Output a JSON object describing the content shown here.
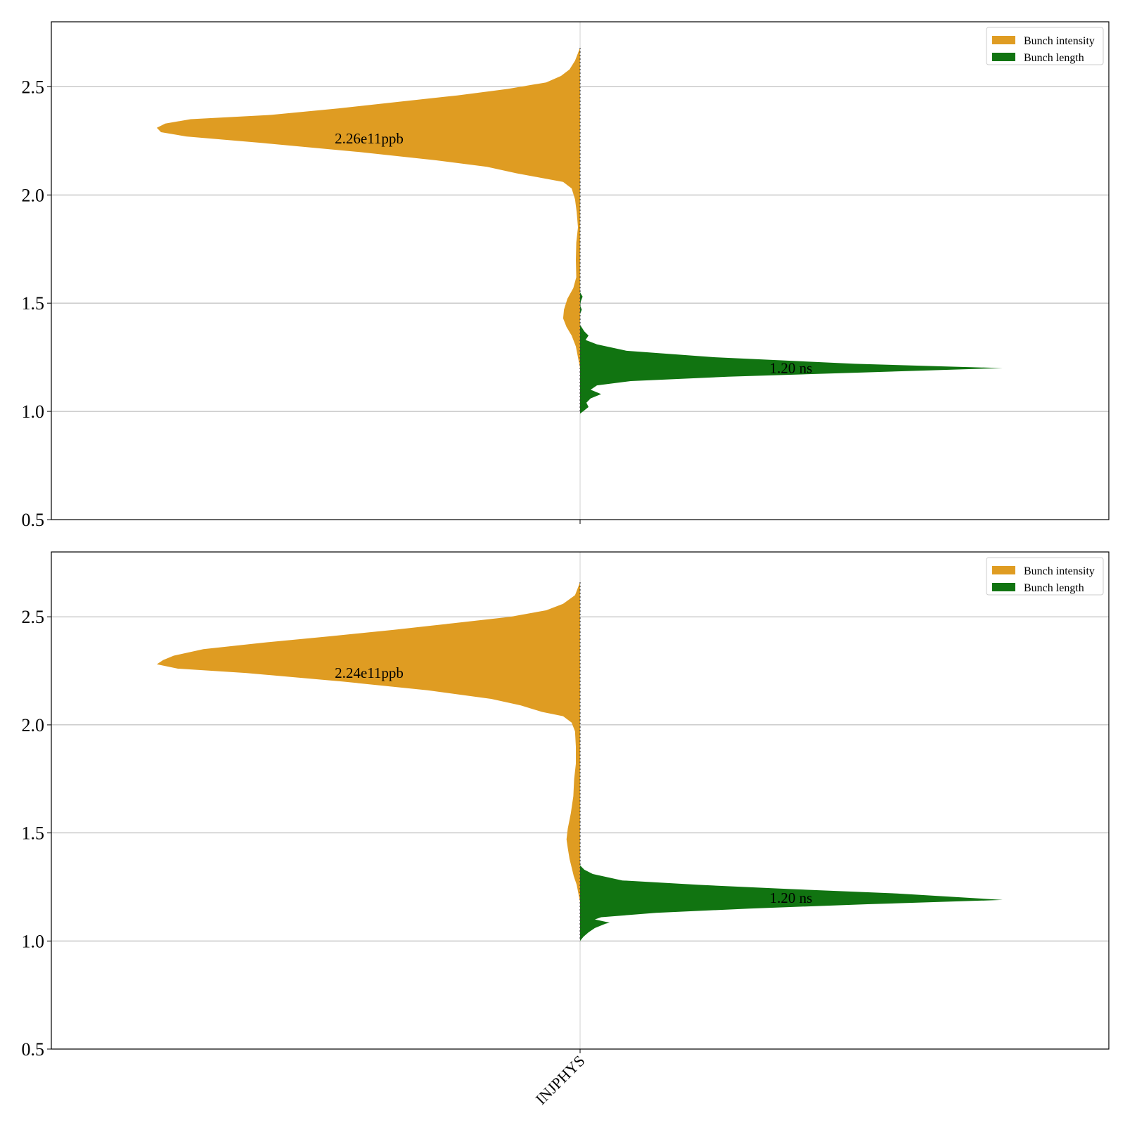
{
  "chart_data": [
    {
      "type": "violin",
      "panel": "top",
      "categories": [
        "INJPHYS"
      ],
      "ylim": [
        0.5,
        2.8
      ],
      "yticks": [
        0.5,
        1.0,
        1.5,
        2.0,
        2.5
      ],
      "ytick_labels": [
        "0.5",
        "1.0",
        "1.5",
        "2.0",
        "2.5"
      ],
      "xtick_labels": [],
      "grid": true,
      "legend_position": "top-right",
      "series": [
        {
          "name": "Bunch intensity",
          "side": "left",
          "color": "#DF9C22",
          "median": 2.26,
          "annotation": "2.26e11ppb",
          "profile": [
            [
              2.68,
              0
            ],
            [
              2.62,
              0.012
            ],
            [
              2.58,
              0.025
            ],
            [
              2.55,
              0.045
            ],
            [
              2.52,
              0.08
            ],
            [
              2.49,
              0.17
            ],
            [
              2.46,
              0.29
            ],
            [
              2.43,
              0.43
            ],
            [
              2.4,
              0.57
            ],
            [
              2.37,
              0.73
            ],
            [
              2.35,
              0.92
            ],
            [
              2.33,
              0.98
            ],
            [
              2.31,
              1.0
            ],
            [
              2.29,
              0.99
            ],
            [
              2.27,
              0.93
            ],
            [
              2.24,
              0.75
            ],
            [
              2.2,
              0.53
            ],
            [
              2.16,
              0.34
            ],
            [
              2.13,
              0.22
            ],
            [
              2.1,
              0.15
            ],
            [
              2.08,
              0.095
            ],
            [
              2.06,
              0.04
            ],
            [
              2.03,
              0.02
            ],
            [
              1.98,
              0.012
            ],
            [
              1.92,
              0.008
            ],
            [
              1.85,
              0.005
            ],
            [
              1.78,
              0.009
            ],
            [
              1.7,
              0.01
            ],
            [
              1.62,
              0.009
            ],
            [
              1.57,
              0.016
            ],
            [
              1.52,
              0.03
            ],
            [
              1.47,
              0.038
            ],
            [
              1.43,
              0.04
            ],
            [
              1.39,
              0.032
            ],
            [
              1.35,
              0.02
            ],
            [
              1.3,
              0.01
            ],
            [
              1.25,
              0.005
            ],
            [
              1.2,
              0.0
            ]
          ]
        },
        {
          "name": "Bunch length",
          "side": "right",
          "color": "#117411",
          "median": 1.2,
          "annotation": "1.20 ns",
          "profile": [
            [
              1.55,
              0
            ],
            [
              1.53,
              0.006
            ],
            [
              1.51,
              0.002
            ],
            [
              1.49,
              0
            ],
            [
              1.47,
              0.004
            ],
            [
              1.45,
              0
            ],
            [
              1.4,
              0
            ],
            [
              1.37,
              0.01
            ],
            [
              1.35,
              0.02
            ],
            [
              1.33,
              0.013
            ],
            [
              1.31,
              0.04
            ],
            [
              1.28,
              0.11
            ],
            [
              1.25,
              0.32
            ],
            [
              1.22,
              0.65
            ],
            [
              1.2,
              1.0
            ],
            [
              1.18,
              0.67
            ],
            [
              1.16,
              0.35
            ],
            [
              1.14,
              0.12
            ],
            [
              1.12,
              0.04
            ],
            [
              1.1,
              0.025
            ],
            [
              1.08,
              0.05
            ],
            [
              1.06,
              0.025
            ],
            [
              1.04,
              0.015
            ],
            [
              1.02,
              0.02
            ],
            [
              1.0,
              0.007
            ],
            [
              0.99,
              0
            ]
          ]
        }
      ]
    },
    {
      "type": "violin",
      "panel": "bottom",
      "categories": [
        "INJPHYS"
      ],
      "ylim": [
        0.5,
        2.8
      ],
      "yticks": [
        0.5,
        1.0,
        1.5,
        2.0,
        2.5
      ],
      "ytick_labels": [
        "0.5",
        "1.0",
        "1.5",
        "2.0",
        "2.5"
      ],
      "xtick_labels": [
        "INJPHYS"
      ],
      "grid": true,
      "legend_position": "top-right",
      "series": [
        {
          "name": "Bunch intensity",
          "side": "left",
          "color": "#DF9C22",
          "median": 2.24,
          "annotation": "2.24e11ppb",
          "profile": [
            [
              2.66,
              0
            ],
            [
              2.6,
              0.012
            ],
            [
              2.56,
              0.04
            ],
            [
              2.53,
              0.08
            ],
            [
              2.5,
              0.165
            ],
            [
              2.47,
              0.3
            ],
            [
              2.44,
              0.44
            ],
            [
              2.41,
              0.59
            ],
            [
              2.38,
              0.75
            ],
            [
              2.35,
              0.89
            ],
            [
              2.32,
              0.96
            ],
            [
              2.3,
              0.985
            ],
            [
              2.28,
              1.0
            ],
            [
              2.26,
              0.95
            ],
            [
              2.24,
              0.79
            ],
            [
              2.2,
              0.56
            ],
            [
              2.16,
              0.36
            ],
            [
              2.12,
              0.21
            ],
            [
              2.09,
              0.14
            ],
            [
              2.06,
              0.09
            ],
            [
              2.04,
              0.04
            ],
            [
              2.01,
              0.02
            ],
            [
              1.97,
              0.012
            ],
            [
              1.9,
              0.01
            ],
            [
              1.82,
              0.01
            ],
            [
              1.75,
              0.014
            ],
            [
              1.67,
              0.016
            ],
            [
              1.59,
              0.022
            ],
            [
              1.52,
              0.029
            ],
            [
              1.47,
              0.032
            ],
            [
              1.43,
              0.029
            ],
            [
              1.38,
              0.025
            ],
            [
              1.34,
              0.02
            ],
            [
              1.3,
              0.015
            ],
            [
              1.26,
              0.008
            ],
            [
              1.22,
              0.004
            ],
            [
              1.18,
              0.0
            ]
          ]
        },
        {
          "name": "Bunch length",
          "side": "right",
          "color": "#117411",
          "median": 1.2,
          "annotation": "1.20 ns",
          "profile": [
            [
              1.35,
              0
            ],
            [
              1.33,
              0.01
            ],
            [
              1.31,
              0.03
            ],
            [
              1.28,
              0.1
            ],
            [
              1.26,
              0.28
            ],
            [
              1.24,
              0.5
            ],
            [
              1.22,
              0.75
            ],
            [
              1.19,
              1.0
            ],
            [
              1.17,
              0.68
            ],
            [
              1.15,
              0.4
            ],
            [
              1.13,
              0.18
            ],
            [
              1.11,
              0.05
            ],
            [
              1.1,
              0.035
            ],
            [
              1.085,
              0.07
            ],
            [
              1.08,
              0.06
            ],
            [
              1.06,
              0.035
            ],
            [
              1.04,
              0.02
            ],
            [
              1.02,
              0.008
            ],
            [
              1.0,
              0
            ]
          ]
        }
      ]
    }
  ]
}
